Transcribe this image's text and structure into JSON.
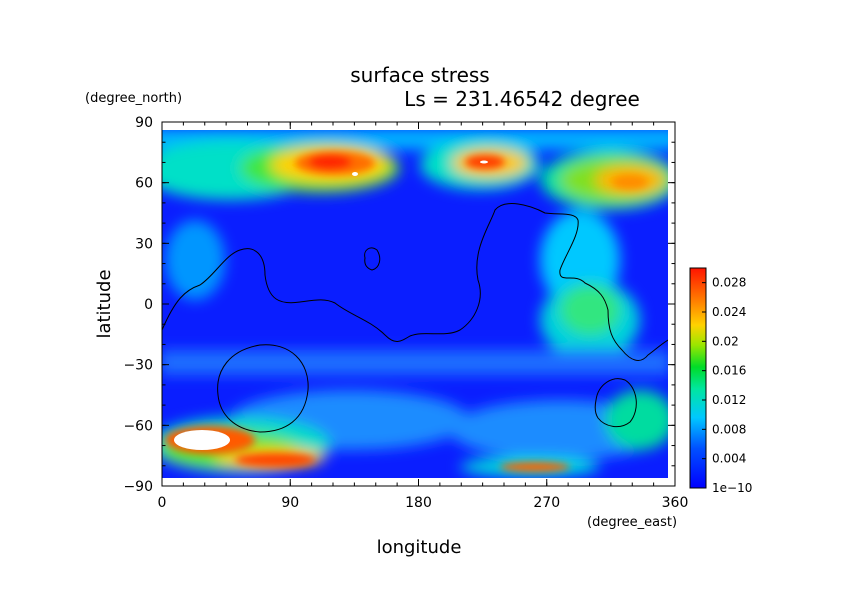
{
  "chart_data": {
    "type": "heatmap",
    "title": "surface stress",
    "subtitle": "Ls = 231.46542 degree",
    "xlabel": "longitude",
    "ylabel": "latitude",
    "x_units": "(degree_east)",
    "y_units": "(degree_north)",
    "xlim": [
      0,
      360
    ],
    "ylim": [
      -90,
      90
    ],
    "x_ticks": [
      "0",
      "90",
      "180",
      "270",
      "360"
    ],
    "y_ticks": [
      "90",
      "60",
      "30",
      "0",
      "−30",
      "−60",
      "−90"
    ],
    "colorbar": {
      "min": 0,
      "max": 0.03,
      "labels": [
        "1e−10",
        "0.004",
        "0.008",
        "0.012",
        "0.016",
        "0.02",
        "0.024",
        "0.028"
      ],
      "label_values": [
        0,
        0.004,
        0.008,
        0.012,
        0.016,
        0.02,
        0.024,
        0.028
      ]
    },
    "colors": {
      "low": "#0000ff",
      "mid_low": "#00c8ff",
      "mid": "#00dc50",
      "mid_high": "#ffd200",
      "high": "#ff2800",
      "saturated": "#ffffff"
    }
  }
}
